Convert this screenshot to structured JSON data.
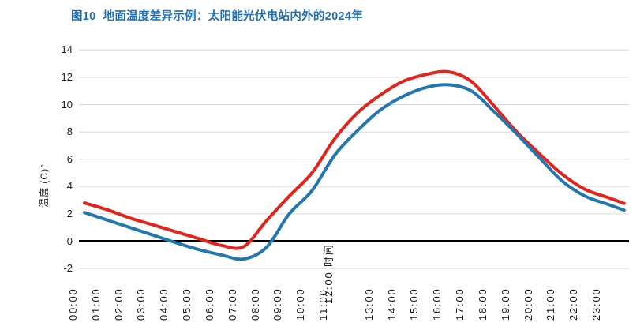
{
  "title": {
    "tag": "图10",
    "text": "地面温度差异示例：太阳能光伏电站内外的2024年"
  },
  "colors": {
    "title_blue": "#1d70b7",
    "series_red": "#e2241c",
    "series_blue": "#2377b0",
    "gridline": "#d9d9d9",
    "zero_line": "#000000",
    "tick_text": "#1a1a1a"
  },
  "y_axis": {
    "label": "温度 (C)°",
    "tick_labels": [
      "14",
      "12",
      "10",
      "8",
      "6",
      "4",
      "2",
      "0",
      "-2"
    ]
  },
  "x_axis": {
    "title": "时间",
    "displaced_tick": "12:00",
    "glitch_text": "12:00 时间",
    "tick_labels": [
      "00:00",
      "01:00",
      "02:00",
      "03:00",
      "04:00",
      "05:00",
      "06:00",
      "07:00",
      "08:00",
      "09:00",
      "10:00",
      "11:00",
      "12:00",
      "13:00",
      "14:00",
      "15:00",
      "16:00",
      "17:00",
      "18:00",
      "19:00",
      "20:00",
      "21:00",
      "22:00",
      "23:00"
    ]
  },
  "chart_data": {
    "type": "line",
    "title": "图10 地面温度差异示例：太阳能光伏电站内外的2024年",
    "xlabel": "时间",
    "ylabel": "温度 (C)°",
    "categories": [
      "00:00",
      "01:00",
      "02:00",
      "03:00",
      "04:00",
      "05:00",
      "06:00",
      "07:00",
      "08:00",
      "09:00",
      "10:00",
      "11:00",
      "12:00",
      "13:00",
      "14:00",
      "15:00",
      "16:00",
      "17:00",
      "18:00",
      "19:00",
      "20:00",
      "21:00",
      "22:00",
      "23:00"
    ],
    "ylim": [
      -2,
      14
    ],
    "yticks": [
      14,
      12,
      10,
      8,
      6,
      4,
      2,
      0,
      -2
    ],
    "grid": "horizontal-light-gray, bold black line at y=0",
    "legend_position": "none",
    "series": [
      {
        "name": "red-line",
        "color": "#e2241c",
        "values": [
          2.8,
          2.3,
          1.7,
          1.2,
          0.7,
          0.2,
          -0.3,
          -0.4,
          1.5,
          3.3,
          5.0,
          7.5,
          9.4,
          10.7,
          11.7,
          12.2,
          12.4,
          11.7,
          9.9,
          8.0,
          6.4,
          4.9,
          3.8,
          3.2
        ]
      },
      {
        "name": "blue-line",
        "color": "#2377b0",
        "values": [
          2.1,
          1.55,
          1.0,
          0.45,
          -0.1,
          -0.6,
          -1.0,
          -1.3,
          -0.45,
          2.0,
          3.7,
          6.3,
          8.1,
          9.6,
          10.6,
          11.25,
          11.45,
          11.0,
          9.5,
          7.85,
          6.1,
          4.4,
          3.3,
          2.7
        ]
      }
    ]
  }
}
